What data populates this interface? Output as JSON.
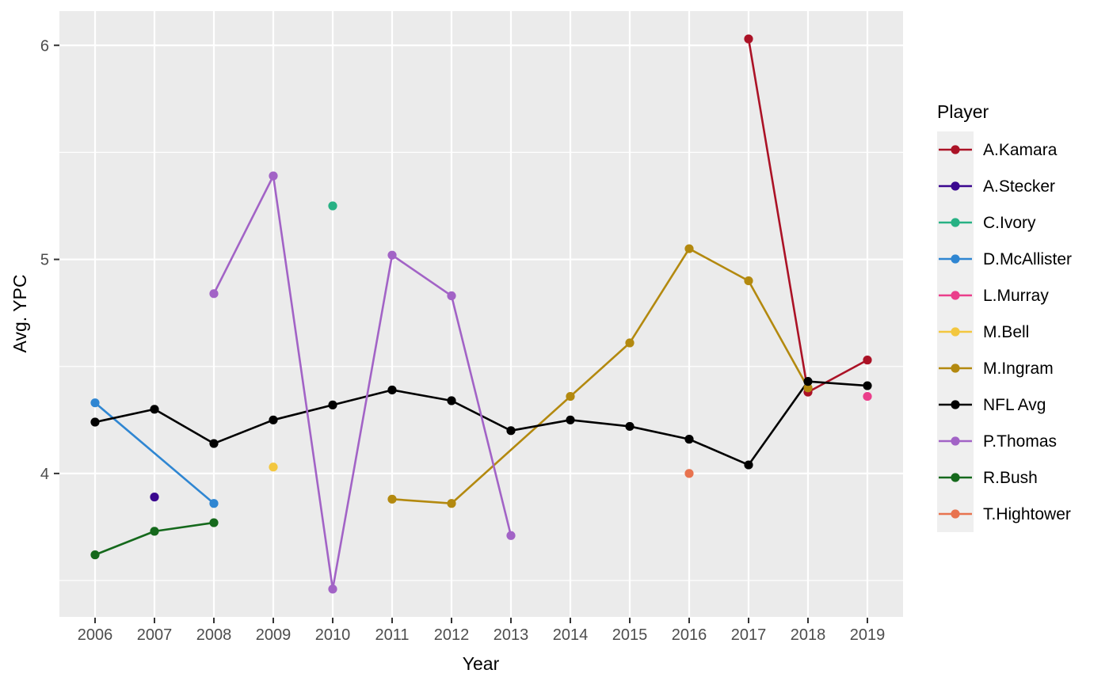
{
  "figure": {
    "xlabel": "Year",
    "ylabel": "Avg. YPC",
    "legend_title": "Player"
  },
  "chart_data": {
    "type": "line",
    "title": "",
    "xlabel": "Year",
    "ylabel": "Avg. YPC",
    "legend_title": "Player",
    "legend_position": "right",
    "grid": true,
    "x_ticks": [
      2006,
      2007,
      2008,
      2009,
      2010,
      2011,
      2012,
      2013,
      2014,
      2015,
      2016,
      2017,
      2018,
      2019
    ],
    "y_ticks": [
      4,
      5,
      6
    ],
    "y_minor_ticks": [
      3.5,
      4.5,
      5.5
    ],
    "xlim": [
      2005.4,
      2019.6
    ],
    "ylim": [
      3.33,
      6.16
    ],
    "series": [
      {
        "name": "A.Kamara",
        "color": "#ab1226",
        "points": [
          [
            2017,
            6.03
          ],
          [
            2018,
            4.38
          ],
          [
            2019,
            4.53
          ]
        ]
      },
      {
        "name": "A.Stecker",
        "color": "#3a078f",
        "points": [
          [
            2007,
            3.89
          ]
        ]
      },
      {
        "name": "C.Ivory",
        "color": "#27b184",
        "points": [
          [
            2010,
            5.25
          ]
        ]
      },
      {
        "name": "D.McAllister",
        "color": "#2f86d2",
        "points": [
          [
            2006,
            4.33
          ],
          [
            2008,
            3.86
          ]
        ]
      },
      {
        "name": "L.Murray",
        "color": "#ea3e8b",
        "points": [
          [
            2019,
            4.36
          ]
        ]
      },
      {
        "name": "M.Bell",
        "color": "#f3c73f",
        "points": [
          [
            2009,
            4.03
          ]
        ]
      },
      {
        "name": "M.Ingram",
        "color": "#b3890f",
        "points": [
          [
            2011,
            3.88
          ],
          [
            2012,
            3.86
          ],
          [
            2014,
            4.36
          ],
          [
            2015,
            4.61
          ],
          [
            2016,
            5.05
          ],
          [
            2017,
            4.9
          ],
          [
            2018,
            4.4
          ]
        ]
      },
      {
        "name": "NFL Avg",
        "color": "#000000",
        "points": [
          [
            2006,
            4.24
          ],
          [
            2007,
            4.3
          ],
          [
            2008,
            4.14
          ],
          [
            2009,
            4.25
          ],
          [
            2010,
            4.32
          ],
          [
            2011,
            4.39
          ],
          [
            2012,
            4.34
          ],
          [
            2013,
            4.2
          ],
          [
            2014,
            4.25
          ],
          [
            2015,
            4.22
          ],
          [
            2016,
            4.16
          ],
          [
            2017,
            4.04
          ],
          [
            2018,
            4.43
          ],
          [
            2019,
            4.41
          ]
        ]
      },
      {
        "name": "P.Thomas",
        "color": "#a263c6",
        "points": [
          [
            2008,
            4.84
          ],
          [
            2009,
            5.39
          ],
          [
            2010,
            3.46
          ],
          [
            2011,
            5.02
          ],
          [
            2012,
            4.83
          ],
          [
            2013,
            3.71
          ]
        ]
      },
      {
        "name": "R.Bush",
        "color": "#15691c",
        "points": [
          [
            2006,
            3.62
          ],
          [
            2007,
            3.73
          ],
          [
            2008,
            3.77
          ]
        ]
      },
      {
        "name": "T.Hightower",
        "color": "#e8734f",
        "points": [
          [
            2016,
            4.0
          ]
        ]
      }
    ],
    "style": {
      "panel_bg": "#ebebeb",
      "grid_color": "#ffffff",
      "axis_text_color": "#4d4d4d",
      "axis_title_color": "#000000",
      "tick_color": "#333333",
      "legend_key_bg": "#efefef",
      "legend_text_color": "#000000"
    }
  }
}
